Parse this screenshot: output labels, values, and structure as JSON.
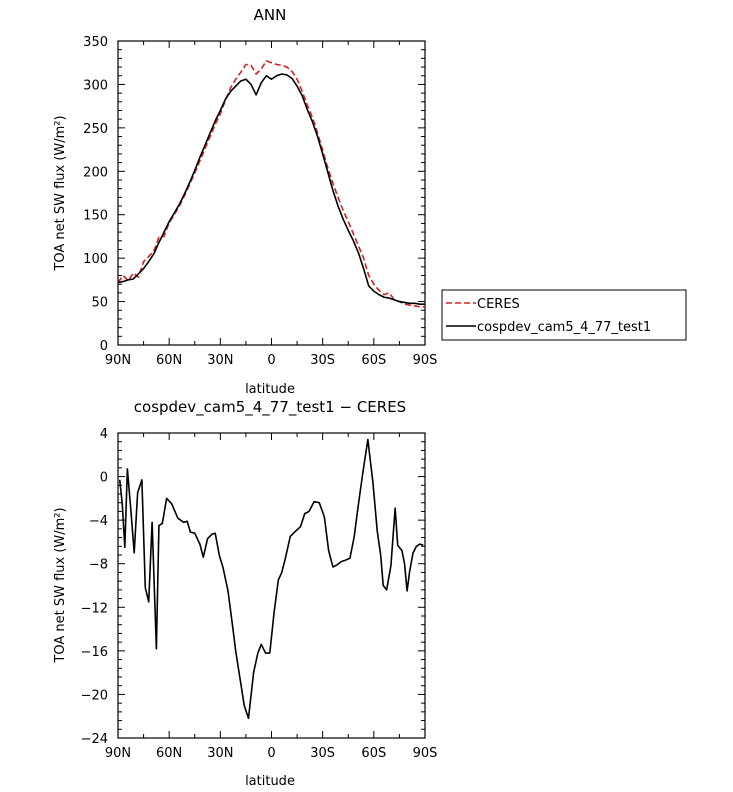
{
  "chart_data": [
    {
      "type": "line",
      "title": "ANN",
      "xlabel": "latitude",
      "ylabel": "TOA net SW flux (W/m²)",
      "xlim": [
        -90,
        90
      ],
      "ylim": [
        0,
        350
      ],
      "x_ticks": [
        -90,
        -60,
        -30,
        0,
        30,
        60,
        90
      ],
      "x_tick_labels": [
        "90N",
        "60N",
        "30N",
        "0",
        "30S",
        "60S",
        "90S"
      ],
      "y_ticks": [
        0,
        50,
        100,
        150,
        200,
        250,
        300,
        350
      ],
      "y_tick_labels": [
        "0",
        "50",
        "100",
        "150",
        "200",
        "250",
        "300",
        "350"
      ],
      "legend_position": "right",
      "series": [
        {
          "name": "CERES",
          "color": "#d62020",
          "dash": "dashed",
          "x": [
            -90,
            -87,
            -84,
            -81,
            -78,
            -75,
            -72,
            -69,
            -66,
            -63,
            -60,
            -57,
            -54,
            -51,
            -48,
            -45,
            -42,
            -39,
            -36,
            -33,
            -30,
            -27,
            -24,
            -21,
            -18,
            -15,
            -12,
            -9,
            -6,
            -3,
            0,
            3,
            6,
            9,
            12,
            15,
            18,
            21,
            24,
            27,
            30,
            33,
            36,
            39,
            42,
            45,
            48,
            51,
            54,
            57,
            60,
            63,
            66,
            69,
            72,
            75,
            78,
            81,
            84,
            87,
            90
          ],
          "y": [
            72,
            80,
            74,
            83,
            78,
            96,
            102,
            108,
            124,
            125,
            141,
            150,
            160,
            172,
            185,
            198,
            212,
            226,
            240,
            254,
            266,
            282,
            296,
            306,
            314,
            323,
            322,
            312,
            318,
            327,
            325,
            323,
            322,
            320,
            315,
            306,
            292,
            276,
            262,
            244,
            224,
            204,
            186,
            170,
            155,
            142,
            128,
            114,
            100,
            80,
            70,
            63,
            58,
            60,
            52,
            50,
            47,
            46,
            45,
            44,
            44
          ]
        },
        {
          "name": "cospdev_cam5_4_77_test1",
          "color": "#000000",
          "dash": "solid",
          "x": [
            -90,
            -87,
            -84,
            -81,
            -78,
            -75,
            -72,
            -69,
            -66,
            -63,
            -60,
            -57,
            -54,
            -51,
            -48,
            -45,
            -42,
            -39,
            -36,
            -33,
            -30,
            -27,
            -24,
            -21,
            -18,
            -15,
            -12,
            -9,
            -6,
            -3,
            0,
            3,
            6,
            9,
            12,
            15,
            18,
            21,
            24,
            27,
            30,
            33,
            36,
            39,
            42,
            45,
            48,
            51,
            54,
            57,
            60,
            63,
            66,
            69,
            72,
            75,
            78,
            81,
            84,
            87,
            90
          ],
          "y": [
            72,
            73,
            75,
            76,
            82,
            88,
            96,
            105,
            118,
            130,
            142,
            152,
            162,
            174,
            187,
            201,
            216,
            230,
            244,
            258,
            270,
            283,
            292,
            298,
            304,
            306,
            300,
            288,
            302,
            310,
            306,
            310,
            312,
            311,
            307,
            298,
            287,
            271,
            257,
            240,
            220,
            199,
            178,
            160,
            145,
            132,
            120,
            106,
            88,
            68,
            62,
            58,
            55,
            54,
            52,
            50,
            49,
            48,
            48,
            47,
            47
          ]
        }
      ]
    },
    {
      "type": "line",
      "title": "cospdev_cam5_4_77_test1 − CERES",
      "xlabel": "latitude",
      "ylabel": "TOA net SW flux (W/m²)",
      "xlim": [
        -90,
        90
      ],
      "ylim": [
        -24,
        4
      ],
      "x_ticks": [
        -90,
        -60,
        -30,
        0,
        30,
        60,
        90
      ],
      "x_tick_labels": [
        "90N",
        "60N",
        "30N",
        "0",
        "30S",
        "60S",
        "90S"
      ],
      "y_ticks": [
        -24,
        -20,
        -16,
        -12,
        -8,
        -4,
        0,
        4
      ],
      "y_tick_labels": [
        "−24",
        "−20",
        "−16",
        "−12",
        "−8",
        "−4",
        "0",
        "4"
      ],
      "series": [
        {
          "color": "#000000",
          "dash": "solid",
          "x": [
            -89,
            -87.5,
            -86,
            -84.5,
            -82.5,
            -80.5,
            -78.5,
            -76,
            -74,
            -72,
            -70,
            -67.5,
            -66,
            -64,
            -61.5,
            -58.5,
            -55,
            -51.5,
            -49.5,
            -47.5,
            -45,
            -42,
            -40,
            -37.5,
            -35,
            -33,
            -30.5,
            -28.5,
            -25.5,
            -23,
            -21,
            -18.5,
            -16,
            -13.5,
            -10.5,
            -8,
            -6,
            -3.5,
            -1,
            1.5,
            4,
            6,
            8,
            11,
            13.5,
            17,
            19.5,
            22,
            25,
            28,
            31,
            33.5,
            36,
            38.5,
            41,
            43,
            46,
            48.5,
            51,
            53.5,
            56.5,
            59.5,
            62,
            64,
            65.5,
            67.5,
            70,
            72.5,
            74,
            76.5,
            78,
            79.5,
            81,
            83,
            85,
            87,
            89
          ],
          "y": [
            -0.3,
            -2.5,
            -6.5,
            0.7,
            -3,
            -7,
            -1.5,
            -0.3,
            -10.2,
            -11.5,
            -4.2,
            -15.8,
            -4.5,
            -4.3,
            -2,
            -2.5,
            -3.8,
            -4.2,
            -4.1,
            -5.1,
            -5.2,
            -6.2,
            -7.4,
            -5.7,
            -5.3,
            -5.2,
            -7.3,
            -8.3,
            -10.5,
            -13.5,
            -16,
            -18.5,
            -21,
            -22.2,
            -18,
            -16.2,
            -15.4,
            -16.2,
            -16.2,
            -12.5,
            -9.5,
            -8.8,
            -7.6,
            -5.5,
            -5.1,
            -4.6,
            -3.4,
            -3.2,
            -2.3,
            -2.4,
            -3.7,
            -6.8,
            -8.3,
            -8.1,
            -7.8,
            -7.7,
            -7.5,
            -5.5,
            -2.5,
            0.3,
            3.4,
            -0.6,
            -5,
            -7.2,
            -10,
            -10.4,
            -8.2,
            -2.9,
            -6.3,
            -6.8,
            -8,
            -10.5,
            -8.7,
            -7,
            -6.4,
            -6.2,
            -6.3
          ]
        }
      ]
    }
  ]
}
